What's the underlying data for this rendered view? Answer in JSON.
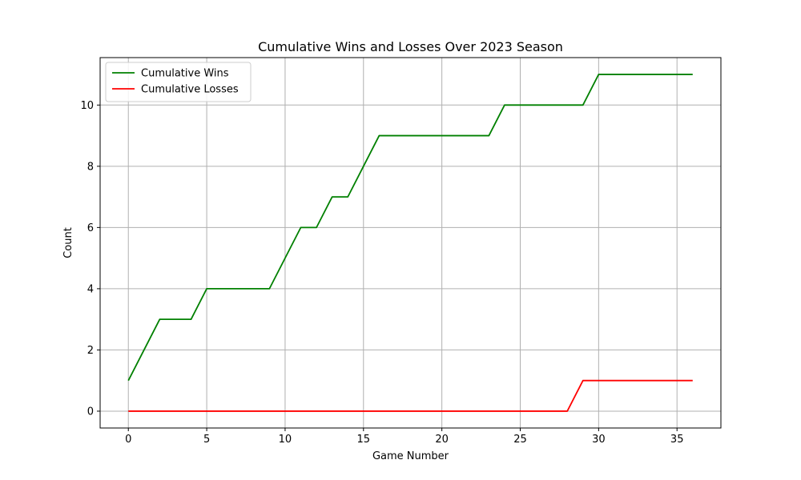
{
  "chart_data": {
    "type": "line",
    "title": "Cumulative Wins and Losses Over 2023 Season",
    "xlabel": "Game Number",
    "ylabel": "Count",
    "xlim": [
      -1.8,
      37.8
    ],
    "ylim": [
      -0.55,
      11.55
    ],
    "xticks": [
      0,
      5,
      10,
      15,
      20,
      25,
      30,
      35
    ],
    "yticks": [
      0,
      2,
      4,
      6,
      8,
      10
    ],
    "grid": true,
    "legend_position": "upper-left",
    "x": [
      0,
      1,
      2,
      3,
      4,
      5,
      6,
      7,
      8,
      9,
      10,
      11,
      12,
      13,
      14,
      15,
      16,
      17,
      18,
      19,
      20,
      21,
      22,
      23,
      24,
      25,
      26,
      27,
      28,
      29,
      30,
      31,
      32,
      33,
      34,
      35,
      36
    ],
    "series": [
      {
        "name": "Cumulative Wins",
        "color": "#008000",
        "values": [
          1,
          2,
          3,
          3,
          3,
          4,
          4,
          4,
          4,
          4,
          5,
          6,
          6,
          7,
          7,
          8,
          9,
          9,
          9,
          9,
          9,
          9,
          9,
          9,
          10,
          10,
          10,
          10,
          10,
          10,
          11,
          11,
          11,
          11,
          11,
          11,
          11
        ]
      },
      {
        "name": "Cumulative Losses",
        "color": "#ff0000",
        "values": [
          0,
          0,
          0,
          0,
          0,
          0,
          0,
          0,
          0,
          0,
          0,
          0,
          0,
          0,
          0,
          0,
          0,
          0,
          0,
          0,
          0,
          0,
          0,
          0,
          0,
          0,
          0,
          0,
          0,
          1,
          1,
          1,
          1,
          1,
          1,
          1,
          1
        ]
      }
    ]
  }
}
